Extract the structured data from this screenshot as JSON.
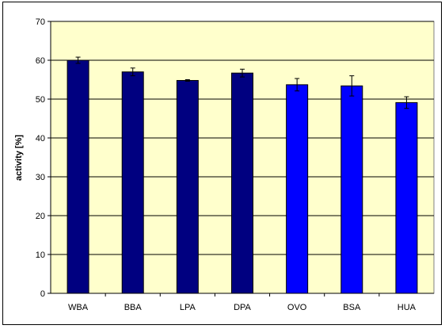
{
  "chart_data": {
    "type": "bar",
    "title": "",
    "xlabel": "",
    "ylabel": "activity [%]",
    "ylim": [
      0,
      70
    ],
    "yticks": [
      0,
      10,
      20,
      30,
      40,
      50,
      60,
      70
    ],
    "grid": true,
    "legend": "none",
    "categories": [
      "WBA",
      "BBA",
      "LPA",
      "DPA",
      "OVO",
      "BSA",
      "HUA"
    ],
    "values": [
      60.0,
      57.0,
      54.8,
      56.7,
      53.7,
      53.4,
      49.1
    ],
    "errors": [
      0.8,
      1.0,
      0.2,
      1.0,
      1.6,
      2.6,
      1.5
    ],
    "bar_colors": [
      "#000080",
      "#000080",
      "#000080",
      "#000080",
      "#0000FF",
      "#0000FF",
      "#0000FF"
    ],
    "plot_background": "#FFFFCC"
  }
}
